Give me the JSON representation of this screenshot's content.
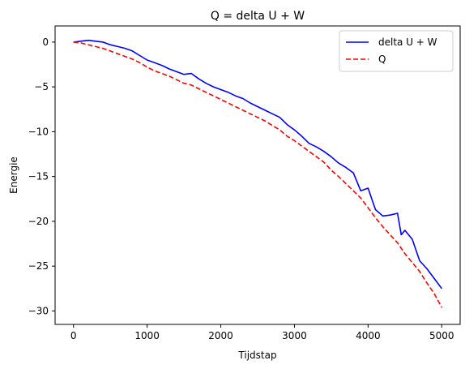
{
  "chart_data": {
    "type": "line",
    "title": "Q = delta U + W",
    "xlabel": "Tijdstap",
    "ylabel": "Energie",
    "xlim": [
      -250,
      5250
    ],
    "ylim": [
      -31.5,
      1.8
    ],
    "xticks": [
      0,
      1000,
      2000,
      3000,
      4000,
      5000
    ],
    "yticks": [
      0,
      -5,
      -10,
      -15,
      -20,
      -25,
      -30
    ],
    "grid": false,
    "legend_position": "top-right",
    "series": [
      {
        "name": "delta U + W",
        "color": "#0000ff",
        "linestyle": "solid",
        "x": [
          0,
          100,
          200,
          300,
          400,
          500,
          600,
          700,
          800,
          900,
          1000,
          1100,
          1200,
          1300,
          1400,
          1500,
          1600,
          1700,
          1800,
          1900,
          2000,
          2100,
          2200,
          2300,
          2400,
          2500,
          2600,
          2700,
          2800,
          2900,
          3000,
          3100,
          3200,
          3300,
          3400,
          3500,
          3600,
          3700,
          3800,
          3900,
          4000,
          4050,
          4100,
          4200,
          4300,
          4400,
          4450,
          4500,
          4600,
          4700,
          4800,
          4900,
          5000
        ],
        "y": [
          0,
          0.1,
          0.2,
          0.1,
          0,
          -0.3,
          -0.5,
          -0.7,
          -1.0,
          -1.5,
          -2.0,
          -2.3,
          -2.6,
          -3.0,
          -3.3,
          -3.6,
          -3.5,
          -4.1,
          -4.6,
          -5.0,
          -5.3,
          -5.6,
          -6.0,
          -6.3,
          -6.8,
          -7.2,
          -7.6,
          -8.0,
          -8.4,
          -9.2,
          -9.8,
          -10.5,
          -11.3,
          -11.7,
          -12.2,
          -12.8,
          -13.5,
          -14.0,
          -14.6,
          -16.6,
          -16.3,
          -17.5,
          -18.7,
          -19.4,
          -19.3,
          -19.1,
          -21.5,
          -21.0,
          -22.0,
          -24.4,
          -25.3,
          -26.4,
          -27.5
        ]
      },
      {
        "name": "Q",
        "color": "#ff0000",
        "linestyle": "dashed",
        "x": [
          0,
          100,
          200,
          300,
          400,
          500,
          600,
          700,
          800,
          900,
          1000,
          1100,
          1200,
          1300,
          1400,
          1500,
          1600,
          1700,
          1800,
          1900,
          2000,
          2100,
          2200,
          2300,
          2400,
          2500,
          2600,
          2700,
          2800,
          2900,
          3000,
          3100,
          3200,
          3300,
          3400,
          3500,
          3600,
          3700,
          3800,
          3900,
          4000,
          4100,
          4200,
          4300,
          4400,
          4500,
          4600,
          4700,
          4800,
          4900,
          5000
        ],
        "y": [
          0,
          -0.1,
          -0.3,
          -0.5,
          -0.7,
          -1.0,
          -1.3,
          -1.6,
          -1.9,
          -2.3,
          -2.8,
          -3.2,
          -3.5,
          -3.8,
          -4.2,
          -4.6,
          -4.8,
          -5.2,
          -5.6,
          -6.0,
          -6.4,
          -6.8,
          -7.2,
          -7.6,
          -8.0,
          -8.4,
          -8.8,
          -9.3,
          -9.8,
          -10.5,
          -11.0,
          -11.6,
          -12.2,
          -12.8,
          -13.4,
          -14.3,
          -15.0,
          -15.8,
          -16.6,
          -17.4,
          -18.5,
          -19.6,
          -20.6,
          -21.5,
          -22.4,
          -23.6,
          -24.6,
          -25.6,
          -26.9,
          -28.1,
          -29.6
        ]
      }
    ]
  }
}
